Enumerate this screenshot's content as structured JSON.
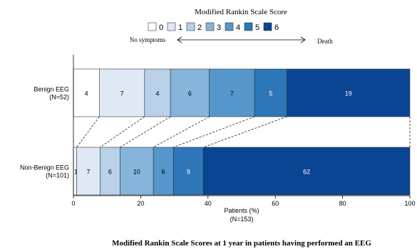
{
  "chart_data": {
    "type": "bar",
    "orientation": "horizontal",
    "stacked": "percent",
    "title": "Modified Rankin Scale Scores at 1 year in patients having performed an EEG",
    "legend": {
      "title": "Modified Rankin Scale Score",
      "placement": "top",
      "entries": [
        "0",
        "1",
        "2",
        "3",
        "4",
        "5",
        "6"
      ],
      "scale_left": "No symptoms",
      "scale_right": "Death"
    },
    "categories": [
      {
        "name": "Benign EEG",
        "n_label": "(N=52)",
        "total": 52
      },
      {
        "name": "Non-Benign EEG",
        "n_label": "(N=101)",
        "total": 101
      }
    ],
    "series": [
      {
        "name": "0",
        "values": [
          4,
          1
        ],
        "color": "#ffffff"
      },
      {
        "name": "1",
        "values": [
          7,
          7
        ],
        "color": "#dfe9f5"
      },
      {
        "name": "2",
        "values": [
          4,
          6
        ],
        "color": "#b8d0e8"
      },
      {
        "name": "3",
        "values": [
          6,
          10
        ],
        "color": "#86b4da"
      },
      {
        "name": "4",
        "values": [
          7,
          6
        ],
        "color": "#5597cb"
      },
      {
        "name": "5",
        "values": [
          5,
          9
        ],
        "color": "#2d76b8"
      },
      {
        "name": "6",
        "values": [
          19,
          62
        ],
        "color": "#0a4594"
      }
    ],
    "xlabel": "Patients (%)",
    "xlabel_sub": "(N=153)",
    "xlim": [
      0,
      100
    ],
    "xticks": [
      "0",
      "20",
      "40",
      "60",
      "80",
      "100"
    ],
    "connectors": "dashed",
    "grid": false
  }
}
